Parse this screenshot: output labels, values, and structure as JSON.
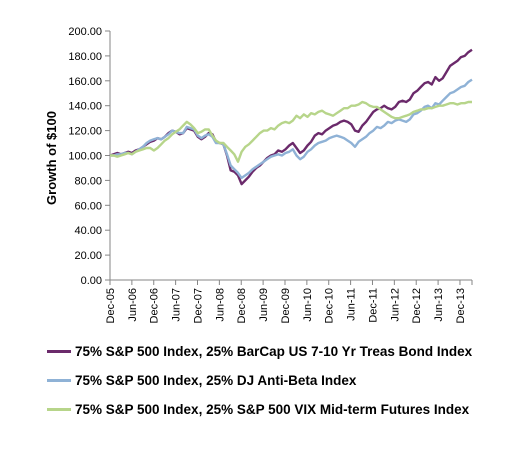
{
  "chart_data": {
    "type": "line",
    "ylabel": "Growth of $100",
    "xlabel": "",
    "ylim": [
      0,
      200
    ],
    "yticks": [
      "0.00",
      "20.00",
      "40.00",
      "60.00",
      "80.00",
      "100.00",
      "120.00",
      "140.00",
      "160.00",
      "180.00",
      "200.00"
    ],
    "xticks": [
      "Dec-05",
      "Jun-06",
      "Dec-06",
      "Jun-07",
      "Dec-07",
      "Jun-08",
      "Dec-08",
      "Jun-09",
      "Dec-09",
      "Jun-10",
      "Dec-10",
      "Jun-11",
      "Dec-11",
      "Jun-12",
      "Dec-12",
      "Jun-13",
      "Dec-13"
    ],
    "grid": false,
    "legend_position": "bottom",
    "series": [
      {
        "name": "75% S&P 500 Index, 25% BarCap US 7-10 Yr Treas Bond Index",
        "color": "#6b2a6b",
        "values": [
          100,
          101,
          102,
          101,
          102,
          103,
          102,
          104,
          105,
          107,
          109,
          111,
          112,
          114,
          113,
          115,
          118,
          120,
          119,
          117,
          118,
          122,
          121,
          120,
          115,
          113,
          115,
          118,
          117,
          111,
          110,
          109,
          100,
          88,
          87,
          84,
          77,
          80,
          83,
          87,
          90,
          92,
          95,
          98,
          100,
          101,
          104,
          103,
          105,
          108,
          110,
          106,
          102,
          104,
          108,
          111,
          116,
          118,
          117,
          120,
          122,
          124,
          125,
          127,
          128,
          127,
          125,
          120,
          119,
          124,
          127,
          131,
          135,
          137,
          138,
          140,
          138,
          137,
          139,
          143,
          144,
          143,
          145,
          150,
          152,
          155,
          158,
          159,
          157,
          163,
          160,
          162,
          167,
          172,
          174,
          176,
          179,
          180,
          183,
          185
        ]
      },
      {
        "name": "75% S&P 500 Index, 25% DJ Anti-Beta Index",
        "color": "#8fb2d6",
        "values": [
          100,
          100,
          101,
          101,
          102,
          102,
          101,
          103,
          105,
          107,
          110,
          112,
          113,
          114,
          113,
          115,
          117,
          120,
          119,
          118,
          118,
          123,
          122,
          121,
          116,
          114,
          116,
          117,
          115,
          110,
          110,
          109,
          101,
          92,
          89,
          86,
          82,
          84,
          86,
          89,
          91,
          93,
          95,
          97,
          99,
          100,
          101,
          100,
          102,
          103,
          105,
          100,
          97,
          99,
          103,
          105,
          108,
          110,
          111,
          112,
          114,
          115,
          116,
          115,
          114,
          112,
          110,
          107,
          111,
          113,
          115,
          118,
          120,
          123,
          122,
          124,
          127,
          126,
          128,
          129,
          128,
          127,
          129,
          133,
          134,
          136,
          139,
          140,
          138,
          142,
          141,
          144,
          147,
          150,
          151,
          153,
          155,
          156,
          159,
          161
        ]
      },
      {
        "name": "75% S&P 500 Index, 25% S&P 500 VIX Mid-term Futures Index",
        "color": "#b7d58a",
        "values": [
          100,
          100,
          99,
          100,
          101,
          102,
          101,
          103,
          104,
          105,
          106,
          106,
          104,
          106,
          109,
          112,
          114,
          117,
          119,
          121,
          124,
          127,
          125,
          122,
          118,
          119,
          121,
          121,
          116,
          112,
          110,
          110,
          107,
          104,
          101,
          95,
          103,
          107,
          109,
          112,
          115,
          118,
          120,
          120,
          122,
          121,
          124,
          126,
          127,
          126,
          128,
          132,
          130,
          133,
          131,
          134,
          133,
          135,
          136,
          134,
          133,
          132,
          134,
          136,
          138,
          138,
          140,
          140,
          141,
          143,
          142,
          140,
          139,
          139,
          137,
          135,
          133,
          131,
          130,
          130,
          131,
          132,
          133,
          135,
          136,
          137,
          137,
          138,
          138,
          139,
          140,
          140,
          141,
          142,
          142,
          141,
          142,
          142,
          143,
          143
        ]
      }
    ]
  }
}
